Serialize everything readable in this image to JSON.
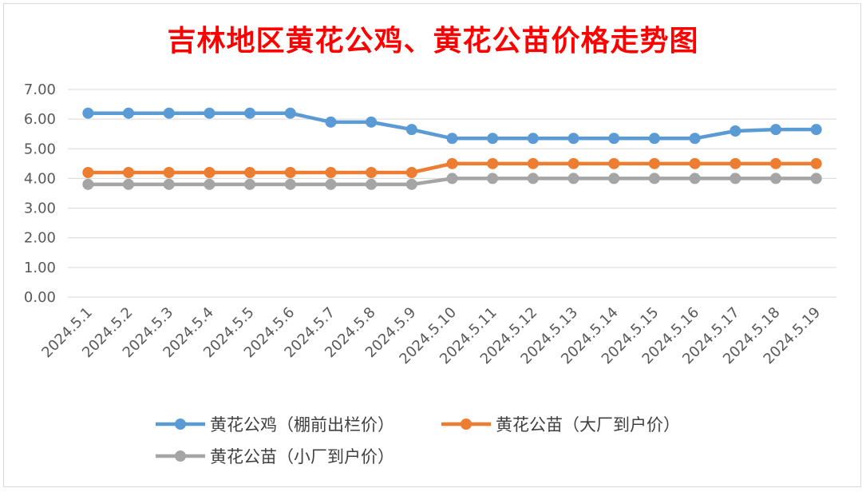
{
  "colors": {
    "title": "#ff0000",
    "grid": "#d9d9d9",
    "axis_text": "#595959",
    "series": [
      "#5b9bd5",
      "#ed7d31",
      "#a5a5a5"
    ]
  },
  "chart_data": {
    "type": "line",
    "title": "吉林地区黄花公鸡、黄花公苗价格走势图",
    "xlabel": "",
    "ylabel": "",
    "ylim": [
      0,
      7
    ],
    "yticks": [
      "0.00",
      "1.00",
      "2.00",
      "3.00",
      "4.00",
      "5.00",
      "6.00",
      "7.00"
    ],
    "grid": true,
    "legend_position": "bottom",
    "categories": [
      "2024.5.1",
      "2024.5.2",
      "2024.5.3",
      "2024.5.4",
      "2024.5.5",
      "2024.5.6",
      "2024.5.7",
      "2024.5.8",
      "2024.5.9",
      "2024.5.10",
      "2024.5.11",
      "2024.5.12",
      "2024.5.13",
      "2024.5.14",
      "2024.5.15",
      "2024.5.16",
      "2024.5.17",
      "2024.5.18",
      "2024.5.19"
    ],
    "series": [
      {
        "name": "黄花公鸡（棚前出栏价）",
        "values": [
          6.2,
          6.2,
          6.2,
          6.2,
          6.2,
          6.2,
          5.9,
          5.9,
          5.65,
          5.35,
          5.35,
          5.35,
          5.35,
          5.35,
          5.35,
          5.35,
          5.6,
          5.65,
          5.65
        ]
      },
      {
        "name": "黄花公苗（大厂到户价）",
        "values": [
          4.2,
          4.2,
          4.2,
          4.2,
          4.2,
          4.2,
          4.2,
          4.2,
          4.2,
          4.5,
          4.5,
          4.5,
          4.5,
          4.5,
          4.5,
          4.5,
          4.5,
          4.5,
          4.5
        ]
      },
      {
        "name": "黄花公苗（小厂到户价）",
        "values": [
          3.8,
          3.8,
          3.8,
          3.8,
          3.8,
          3.8,
          3.8,
          3.8,
          3.8,
          4.0,
          4.0,
          4.0,
          4.0,
          4.0,
          4.0,
          4.0,
          4.0,
          4.0,
          4.0
        ]
      }
    ]
  }
}
